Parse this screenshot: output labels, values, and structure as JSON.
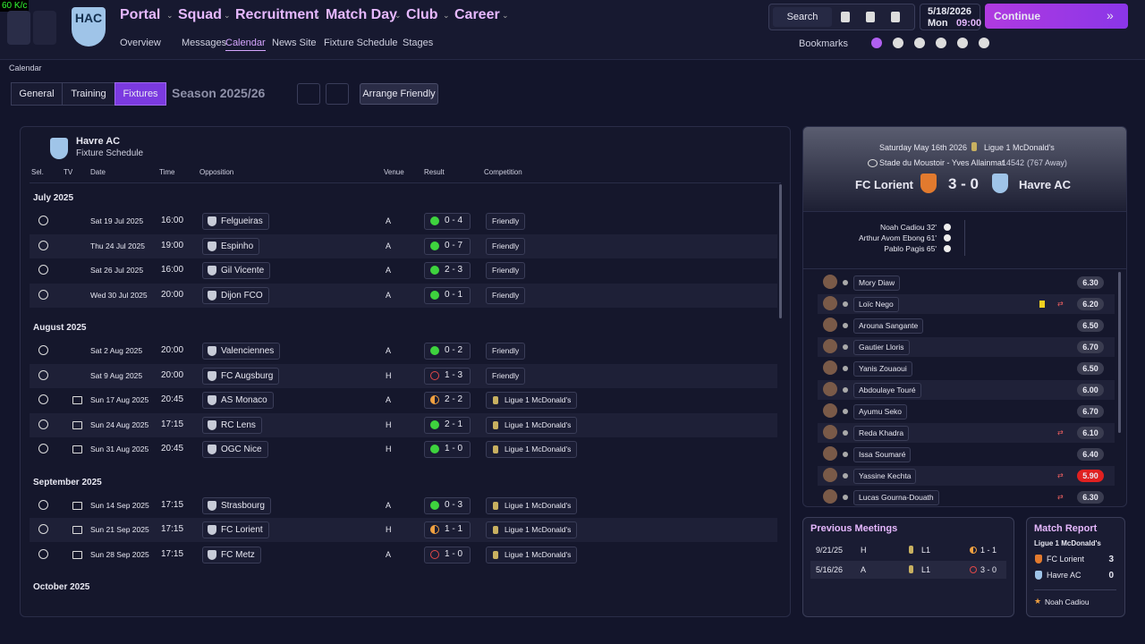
{
  "status": {
    "fps": "60 K/c"
  },
  "nav": {
    "club_badge": "HAC",
    "menus": [
      "Portal",
      "Squad",
      "Recruitment",
      "Match Day",
      "Club",
      "Career"
    ],
    "submenu": [
      "Overview",
      "Messages",
      "Calendar",
      "News Site",
      "Fixture Schedule",
      "Stages"
    ],
    "search": "Search",
    "date": "5/18/2026",
    "day": "Mon",
    "time": "09:00",
    "continue": "Continue",
    "bookmarks": "Bookmarks"
  },
  "page": {
    "breadcrumb": "Calendar",
    "tabs": [
      "General",
      "Training",
      "Fixtures"
    ],
    "season": "Season 2025/26",
    "arrange": "Arrange Friendly"
  },
  "schedule": {
    "team": "Havre AC",
    "subtitle": "Fixture Schedule",
    "columns": [
      "Sel.",
      "TV",
      "Date",
      "Time",
      "Opposition",
      "Venue",
      "Result",
      "Competition"
    ],
    "groups": [
      {
        "month": "July 2025",
        "fixtures": [
          {
            "tv": false,
            "date": "Sat 19 Jul 2025",
            "time": "16:00",
            "opponent": "Felgueiras",
            "venue": "A",
            "result": "0 - 4",
            "competition": "Friendly"
          },
          {
            "tv": false,
            "date": "Thu 24 Jul 2025",
            "time": "19:00",
            "opponent": "Espinho",
            "venue": "A",
            "result": "0 - 7",
            "competition": "Friendly"
          },
          {
            "tv": false,
            "date": "Sat 26 Jul 2025",
            "time": "16:00",
            "opponent": "Gil Vicente",
            "venue": "A",
            "result": "2 - 3",
            "competition": "Friendly"
          },
          {
            "tv": false,
            "date": "Wed 30 Jul 2025",
            "time": "20:00",
            "opponent": "Dijon FCO",
            "venue": "A",
            "result": "0 - 1",
            "competition": "Friendly"
          }
        ]
      },
      {
        "month": "August 2025",
        "fixtures": [
          {
            "tv": false,
            "date": "Sat 2 Aug 2025",
            "time": "20:00",
            "opponent": "Valenciennes",
            "venue": "A",
            "result": "0 - 2",
            "competition": "Friendly"
          },
          {
            "tv": false,
            "date": "Sat 9 Aug 2025",
            "time": "20:00",
            "opponent": "FC Augsburg",
            "venue": "H",
            "result": "1 - 3",
            "competition": "Friendly"
          },
          {
            "tv": true,
            "date": "Sun 17 Aug 2025",
            "time": "20:45",
            "opponent": "AS Monaco",
            "venue": "A",
            "result": "2 - 2",
            "competition": "Ligue 1 McDonald's"
          },
          {
            "tv": true,
            "date": "Sun 24 Aug 2025",
            "time": "17:15",
            "opponent": "RC Lens",
            "venue": "H",
            "result": "2 - 1",
            "competition": "Ligue 1 McDonald's"
          },
          {
            "tv": true,
            "date": "Sun 31 Aug 2025",
            "time": "20:45",
            "opponent": "OGC Nice",
            "venue": "H",
            "result": "1 - 0",
            "competition": "Ligue 1 McDonald's"
          }
        ]
      },
      {
        "month": "September 2025",
        "fixtures": [
          {
            "tv": true,
            "date": "Sun 14 Sep 2025",
            "time": "17:15",
            "opponent": "Strasbourg",
            "venue": "A",
            "result": "0 - 3",
            "competition": "Ligue 1 McDonald's"
          },
          {
            "tv": true,
            "date": "Sun 21 Sep 2025",
            "time": "17:15",
            "opponent": "FC Lorient",
            "venue": "H",
            "result": "1 - 1",
            "competition": "Ligue 1 McDonald's"
          },
          {
            "tv": true,
            "date": "Sun 28 Sep 2025",
            "time": "17:15",
            "opponent": "FC Metz",
            "venue": "A",
            "result": "1 - 0",
            "competition": "Ligue 1 McDonald's"
          }
        ]
      },
      {
        "month": "October 2025",
        "fixtures": []
      }
    ]
  },
  "match": {
    "date": "Saturday May 16th 2026",
    "competition": "Ligue 1 McDonald's",
    "stadium": "Stade du Moustoir - Yves Allainmat",
    "attendance": "14542",
    "away_fans": "(767 Away)",
    "home": "FC Lorient",
    "score": "3 - 0",
    "away": "Havre AC",
    "scorers": [
      "Noah Cadiou 32'",
      "Arthur Avom Ebong 61'",
      "Pablo Pagis 65'"
    ],
    "players": [
      {
        "name": "Mory Diaw",
        "rating": "6.30",
        "card": false,
        "sub": false
      },
      {
        "name": "Loïc Nego",
        "rating": "6.20",
        "card": true,
        "sub": true
      },
      {
        "name": "Arouna Sangante",
        "rating": "6.50",
        "card": false,
        "sub": false
      },
      {
        "name": "Gautier Lloris",
        "rating": "6.70",
        "card": false,
        "sub": false
      },
      {
        "name": "Yanis Zouaoui",
        "rating": "6.50",
        "card": false,
        "sub": false
      },
      {
        "name": "Abdoulaye Touré",
        "rating": "6.00",
        "card": false,
        "sub": false
      },
      {
        "name": "Ayumu Seko",
        "rating": "6.70",
        "card": false,
        "sub": false
      },
      {
        "name": "Reda Khadra",
        "rating": "6.10",
        "card": false,
        "sub": true
      },
      {
        "name": "Issa Soumaré",
        "rating": "6.40",
        "card": false,
        "sub": false
      },
      {
        "name": "Yassine Kechta",
        "rating": "5.90",
        "card": false,
        "sub": true
      },
      {
        "name": "Lucas Gourna-Douath",
        "rating": "6.30",
        "card": false,
        "sub": true
      }
    ]
  },
  "previous": {
    "title": "Previous Meetings",
    "rows": [
      {
        "date": "9/21/25",
        "venue": "H",
        "competition": "L1",
        "score": "1 - 1"
      },
      {
        "date": "5/16/26",
        "venue": "A",
        "competition": "L1",
        "score": "3 - 0"
      }
    ]
  },
  "report": {
    "title": "Match Report",
    "competition": "Ligue 1 McDonald's",
    "teams": [
      {
        "name": "FC Lorient",
        "score": 3
      },
      {
        "name": "Havre AC",
        "score": 0
      }
    ],
    "player_of_match": "Noah Cadiou"
  }
}
